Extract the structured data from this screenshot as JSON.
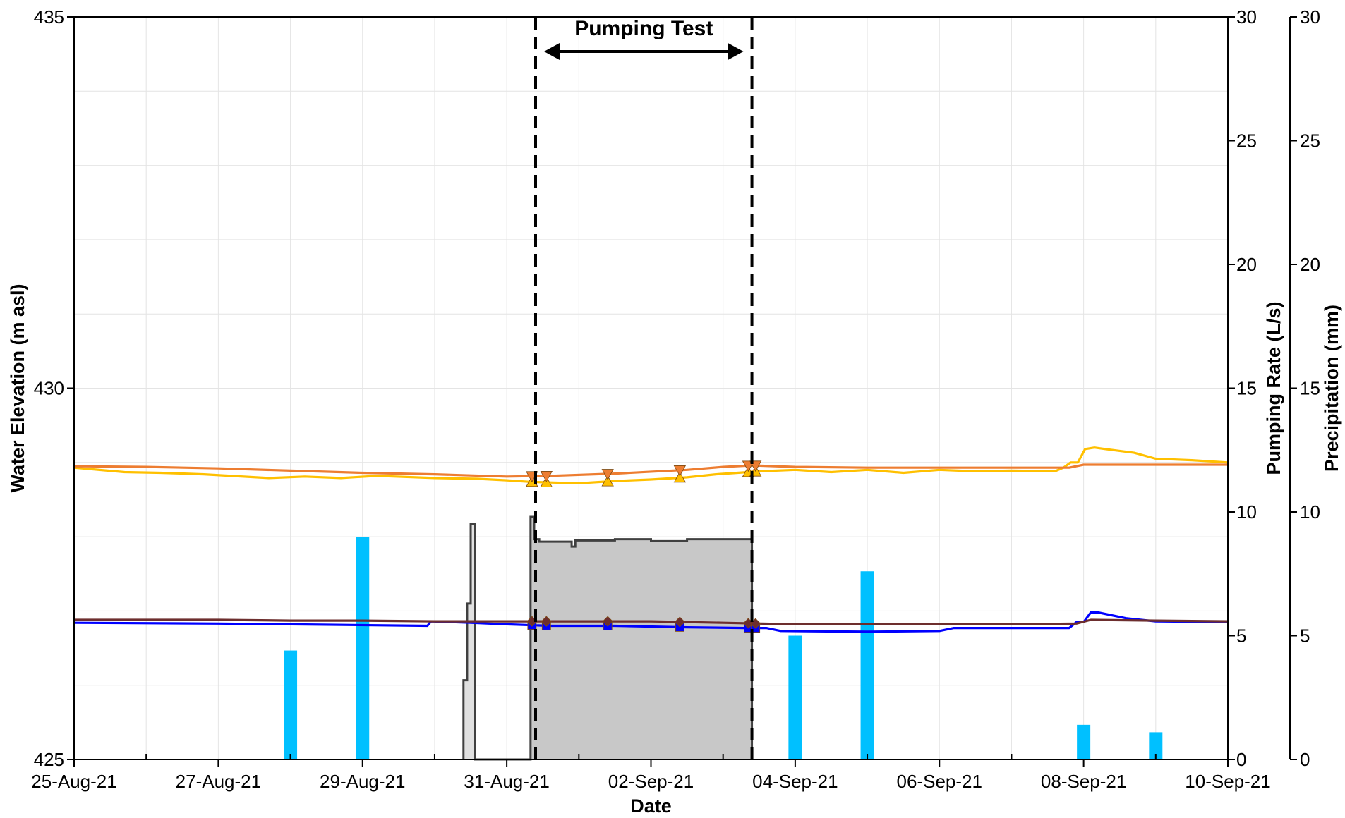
{
  "chart_data": {
    "type": "line",
    "title": "",
    "xlabel": "Date",
    "ylabel": "Water Elevation (m asl)",
    "y2label": "Pumping Rate (L/s)",
    "y3label": "Precipitation (mm)",
    "x_start": "25-Aug-21",
    "xlim_days": [
      0,
      16
    ],
    "x_tick_labels": [
      "25-Aug-21",
      "27-Aug-21",
      "29-Aug-21",
      "31-Aug-21",
      "02-Sep-21",
      "04-Sep-21",
      "06-Sep-21",
      "08-Sep-21",
      "10-Sep-21"
    ],
    "ylim": [
      425,
      435
    ],
    "y_ticks": [
      425,
      430,
      435
    ],
    "y2lim": [
      0,
      30
    ],
    "y2_ticks": [
      0,
      5,
      10,
      15,
      20,
      25,
      30
    ],
    "y3lim": [
      0,
      30
    ],
    "y3_ticks": [
      0,
      5,
      10,
      15,
      20,
      25,
      30
    ],
    "grid": true,
    "annotation": {
      "text": "Pumping Test",
      "start_day": 6.4,
      "end_day": 9.4
    },
    "series": [
      {
        "kind": "line",
        "axis": "left",
        "color": "#ffc000",
        "marker": "triangle-up",
        "points": [
          [
            0,
            428.93
          ],
          [
            0.7,
            428.87
          ],
          [
            1.2,
            428.86
          ],
          [
            1.8,
            428.84
          ],
          [
            2.7,
            428.79
          ],
          [
            3.2,
            428.81
          ],
          [
            3.7,
            428.79
          ],
          [
            4.2,
            428.82
          ],
          [
            5.0,
            428.79
          ],
          [
            5.6,
            428.78
          ],
          [
            6.0,
            428.76
          ],
          [
            6.3,
            428.74
          ],
          [
            6.6,
            428.73
          ],
          [
            7.0,
            428.72
          ],
          [
            7.5,
            428.75
          ],
          [
            8.0,
            428.77
          ],
          [
            8.5,
            428.8
          ],
          [
            8.9,
            428.84
          ],
          [
            9.2,
            428.86
          ],
          [
            9.5,
            428.88
          ],
          [
            10.0,
            428.9
          ],
          [
            10.5,
            428.87
          ],
          [
            11.0,
            428.9
          ],
          [
            11.5,
            428.86
          ],
          [
            12.0,
            428.9
          ],
          [
            12.5,
            428.88
          ],
          [
            13.0,
            428.89
          ],
          [
            13.6,
            428.88
          ],
          [
            13.72,
            428.93
          ],
          [
            13.82,
            429.0
          ],
          [
            13.92,
            429.0
          ],
          [
            14.02,
            429.18
          ],
          [
            14.15,
            429.2
          ],
          [
            14.3,
            429.18
          ],
          [
            14.7,
            429.13
          ],
          [
            15.0,
            429.05
          ],
          [
            15.5,
            429.03
          ],
          [
            16.0,
            429.0
          ]
        ],
        "marker_days": [
          6.35,
          6.55,
          7.4,
          8.4,
          9.35,
          9.45
        ]
      },
      {
        "kind": "line",
        "axis": "left",
        "color": "#ed7d31",
        "marker": "triangle-down",
        "points": [
          [
            0,
            428.95
          ],
          [
            1,
            428.94
          ],
          [
            2,
            428.92
          ],
          [
            3,
            428.89
          ],
          [
            4,
            428.86
          ],
          [
            5,
            428.84
          ],
          [
            6,
            428.81
          ],
          [
            6.6,
            428.82
          ],
          [
            7.5,
            428.85
          ],
          [
            8.5,
            428.9
          ],
          [
            9.0,
            428.94
          ],
          [
            9.4,
            428.96
          ],
          [
            10.0,
            428.94
          ],
          [
            11.0,
            428.93
          ],
          [
            12.0,
            428.93
          ],
          [
            13.0,
            428.93
          ],
          [
            13.8,
            428.93
          ],
          [
            14.0,
            428.97
          ],
          [
            15.0,
            428.97
          ],
          [
            16.0,
            428.97
          ]
        ],
        "marker_days": [
          6.35,
          6.55,
          7.4,
          8.4,
          9.35,
          9.45
        ]
      },
      {
        "kind": "line",
        "axis": "left",
        "color": "#0000ff",
        "marker": "square",
        "points": [
          [
            0,
            426.84
          ],
          [
            2,
            426.83
          ],
          [
            3,
            426.82
          ],
          [
            4.9,
            426.8
          ],
          [
            4.95,
            426.86
          ],
          [
            5.5,
            426.84
          ],
          [
            6.0,
            426.82
          ],
          [
            6.6,
            426.8
          ],
          [
            7.5,
            426.8
          ],
          [
            8.5,
            426.78
          ],
          [
            9.3,
            426.77
          ],
          [
            9.6,
            426.77
          ],
          [
            9.8,
            426.73
          ],
          [
            11.0,
            426.72
          ],
          [
            12.0,
            426.73
          ],
          [
            12.2,
            426.77
          ],
          [
            13.0,
            426.77
          ],
          [
            13.8,
            426.77
          ],
          [
            13.9,
            426.85
          ],
          [
            14.0,
            426.85
          ],
          [
            14.1,
            426.98
          ],
          [
            14.2,
            426.98
          ],
          [
            14.6,
            426.9
          ],
          [
            15.0,
            426.86
          ],
          [
            16.0,
            426.85
          ]
        ],
        "marker_days": [
          6.35,
          6.55,
          7.4,
          8.4,
          9.35,
          9.45
        ]
      },
      {
        "kind": "line",
        "axis": "left",
        "color": "#6d2e2e",
        "marker": "diamond",
        "points": [
          [
            0,
            426.88
          ],
          [
            1,
            426.88
          ],
          [
            2,
            426.88
          ],
          [
            3,
            426.87
          ],
          [
            4,
            426.87
          ],
          [
            5,
            426.86
          ],
          [
            6,
            426.86
          ],
          [
            7,
            426.86
          ],
          [
            8,
            426.86
          ],
          [
            9,
            426.84
          ],
          [
            10,
            426.82
          ],
          [
            11,
            426.82
          ],
          [
            12,
            426.82
          ],
          [
            13,
            426.82
          ],
          [
            13.9,
            426.83
          ],
          [
            14.1,
            426.88
          ],
          [
            15,
            426.87
          ],
          [
            16,
            426.86
          ]
        ],
        "marker_days": [
          6.35,
          6.55,
          7.4,
          8.4,
          9.35,
          9.45
        ]
      }
    ],
    "pumping_rate": {
      "axis": "right",
      "color": "#404040",
      "fill": "#c8c8c8",
      "steps": [
        [
          5.4,
          0
        ],
        [
          5.4,
          3.2
        ],
        [
          5.45,
          3.2
        ],
        [
          5.45,
          6.3
        ],
        [
          5.5,
          6.3
        ],
        [
          5.5,
          9.5
        ],
        [
          5.56,
          9.5
        ],
        [
          5.56,
          0
        ],
        [
          6.33,
          0
        ],
        [
          6.33,
          9.8
        ],
        [
          6.38,
          9.8
        ],
        [
          6.38,
          8.9
        ],
        [
          6.45,
          8.9
        ],
        [
          6.45,
          8.8
        ],
        [
          6.9,
          8.8
        ],
        [
          6.9,
          8.6
        ],
        [
          6.95,
          8.6
        ],
        [
          6.95,
          8.85
        ],
        [
          7.5,
          8.85
        ],
        [
          7.5,
          8.9
        ],
        [
          8.0,
          8.9
        ],
        [
          8.0,
          8.82
        ],
        [
          8.5,
          8.82
        ],
        [
          8.5,
          8.9
        ],
        [
          9.4,
          8.9
        ],
        [
          9.4,
          0
        ]
      ]
    },
    "precipitation": {
      "axis": "right",
      "color": "#00c0ff",
      "days": [
        3,
        4,
        10,
        11,
        14,
        15
      ],
      "values": [
        4.4,
        9.0,
        5.0,
        7.6,
        1.4,
        1.1
      ]
    }
  }
}
